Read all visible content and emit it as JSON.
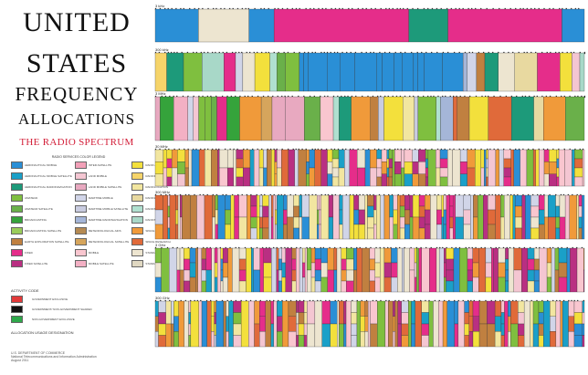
{
  "title": {
    "line1": "UNITED",
    "line2": "STATES",
    "line3": "FREQUENCY",
    "line4": "ALLOCATIONS",
    "subtitle": "THE RADIO SPECTRUM"
  },
  "legend": {
    "heading": "RADIO SERVICES COLOR LEGEND",
    "items": [
      {
        "label": "AERONAUTICAL MOBILE",
        "color": "#2a8fd6"
      },
      {
        "label": "INTER-SATELLITE",
        "color": "#f2a0b8"
      },
      {
        "label": "RADIO ASTRONOMY",
        "color": "#f3e03c"
      },
      {
        "label": "AERONAUTICAL MOBILE SATELLITE",
        "color": "#1aa0c8"
      },
      {
        "label": "LAND MOBILE",
        "color": "#f4c6d2"
      },
      {
        "label": "RADIODETERMINATION SATELLITE",
        "color": "#f6d46a"
      },
      {
        "label": "AERONAUTICAL RADIONAVIGATION",
        "color": "#1d9a7a"
      },
      {
        "label": "LAND MOBILE SATELLITE",
        "color": "#e8a9c0"
      },
      {
        "label": "RADIOLOCATION",
        "color": "#f2e6a0"
      },
      {
        "label": "AMATEUR",
        "color": "#7fbf3f"
      },
      {
        "label": "MARITIME MOBILE",
        "color": "#d1d5e8"
      },
      {
        "label": "RADIOLOCATION SATELLITE",
        "color": "#e8d9a0"
      },
      {
        "label": "AMATEUR SATELLITE",
        "color": "#6ab04a"
      },
      {
        "label": "MARITIME MOBILE SATELLITE",
        "color": "#c9cce0"
      },
      {
        "label": "RADIONAVIGATION",
        "color": "#b0e0d0"
      },
      {
        "label": "BROADCASTING",
        "color": "#35a33b"
      },
      {
        "label": "MARITIME RADIONAVIGATION",
        "color": "#a5b6d8"
      },
      {
        "label": "RADIONAVIGATION SATELLITE",
        "color": "#a8d8c8"
      },
      {
        "label": "BROADCASTING SATELLITE",
        "color": "#9acd5a"
      },
      {
        "label": "METEOROLOGICAL AIDS",
        "color": "#b58a52"
      },
      {
        "label": "SPACE OPERATION",
        "color": "#f09a3a"
      },
      {
        "label": "EARTH EXPLORATION SATELLITE",
        "color": "#c08040"
      },
      {
        "label": "METEOROLOGICAL SATELLITE",
        "color": "#d6a55c"
      },
      {
        "label": "SPACE RESEARCH",
        "color": "#e06a3a"
      },
      {
        "label": "FIXED",
        "color": "#e52d8a"
      },
      {
        "label": "MOBILE",
        "color": "#f9c6cf"
      },
      {
        "label": "STANDARD FREQUENCY AND TIME SIGNAL",
        "color": "#ede5d0"
      },
      {
        "label": "FIXED SATELLITE",
        "color": "#b92f82"
      },
      {
        "label": "MOBILE SATELLITE",
        "color": "#f3b0c4"
      },
      {
        "label": "STANDARD FREQUENCY AND TIME SIGNAL SATELLITE",
        "color": "#e0d8c2"
      }
    ]
  },
  "activity": {
    "heading": "ACTIVITY CODE",
    "items": [
      {
        "label": "GOVERNMENT EXCLUSIVE",
        "color": "#e23a3a"
      },
      {
        "label": "GOVERNMENT/ NON-GOVERNMENT SHARED",
        "color": "#111111"
      },
      {
        "label": "NON-GOVERNMENT EXCLUSIVE",
        "color": "#2ea84a"
      }
    ],
    "designation_heading": "ALLOCATION USAGE DESIGNATION"
  },
  "footer": {
    "agency": "U.S. DEPARTMENT OF COMMERCE",
    "office": "National Telecommunications and Information Administration",
    "date": "August 2011"
  },
  "chart_data": {
    "type": "frequency allocation chart",
    "bands": [
      {
        "label": "3 kHz",
        "palette": "wide"
      },
      {
        "label": "300 kHz",
        "palette": "mixed"
      },
      {
        "label": "3 MHz",
        "palette": "mixed"
      },
      {
        "label": "30 MHz",
        "palette": "dense"
      },
      {
        "label": "300 MHz",
        "palette": "dense"
      },
      {
        "label": "3 GHz",
        "palette": "dense"
      },
      {
        "label": "300 GHz",
        "palette": "dense"
      }
    ]
  }
}
